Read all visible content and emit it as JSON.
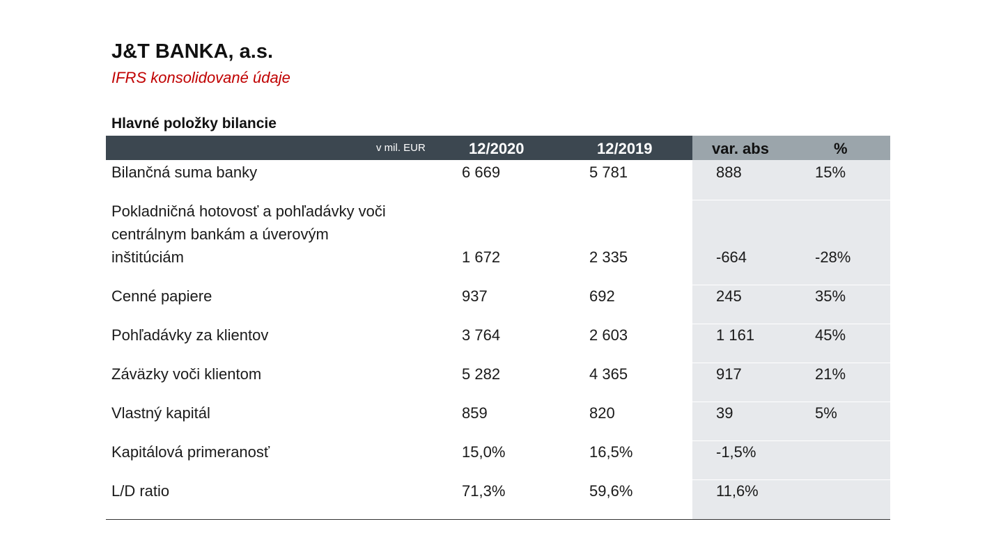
{
  "header": {
    "title": "J&T BANKA, a.s.",
    "subtitle": "IFRS konsolidované údaje"
  },
  "section": {
    "title": "Hlavné položky bilancie"
  },
  "table": {
    "unit_label": "v mil. EUR",
    "columns": [
      "12/2020",
      "12/2019",
      "var. abs",
      "%"
    ],
    "rows": [
      {
        "label_lines": [
          "Bilančná suma banky"
        ],
        "values": [
          "6 669",
          "5 781",
          "888",
          "15%"
        ]
      },
      {
        "label_lines": [
          "Pokladničná hotovosť a pohľadávky voči",
          "centrálnym bankám a úverovým",
          "inštitúciám"
        ],
        "values": [
          "1 672",
          "2 335",
          "-664",
          "-28%"
        ]
      },
      {
        "label_lines": [
          "Cenné papiere"
        ],
        "values": [
          "937",
          "692",
          "245",
          "35%"
        ]
      },
      {
        "label_lines": [
          "Pohľadávky za klientov"
        ],
        "values": [
          "3 764",
          "2 603",
          "1 161",
          "45%"
        ]
      },
      {
        "label_lines": [
          "Záväzky voči klientom"
        ],
        "values": [
          "5 282",
          "4 365",
          "917",
          "21%"
        ]
      },
      {
        "label_lines": [
          "Vlastný kapitál"
        ],
        "values": [
          "859",
          "820",
          "39",
          "5%"
        ]
      },
      {
        "label_lines": [
          "Kapitálová primeranosť"
        ],
        "values": [
          "15,0%",
          "16,5%",
          "-1,5%",
          ""
        ]
      },
      {
        "label_lines": [
          "L/D ratio"
        ],
        "values": [
          "71,3%",
          "59,6%",
          "11,6%",
          ""
        ]
      }
    ]
  },
  "colors": {
    "header_dark": "#3c4750",
    "header_gray": "#9ba5ab",
    "variance_bg": "#e7e9ec",
    "subtitle": "#c00000"
  }
}
